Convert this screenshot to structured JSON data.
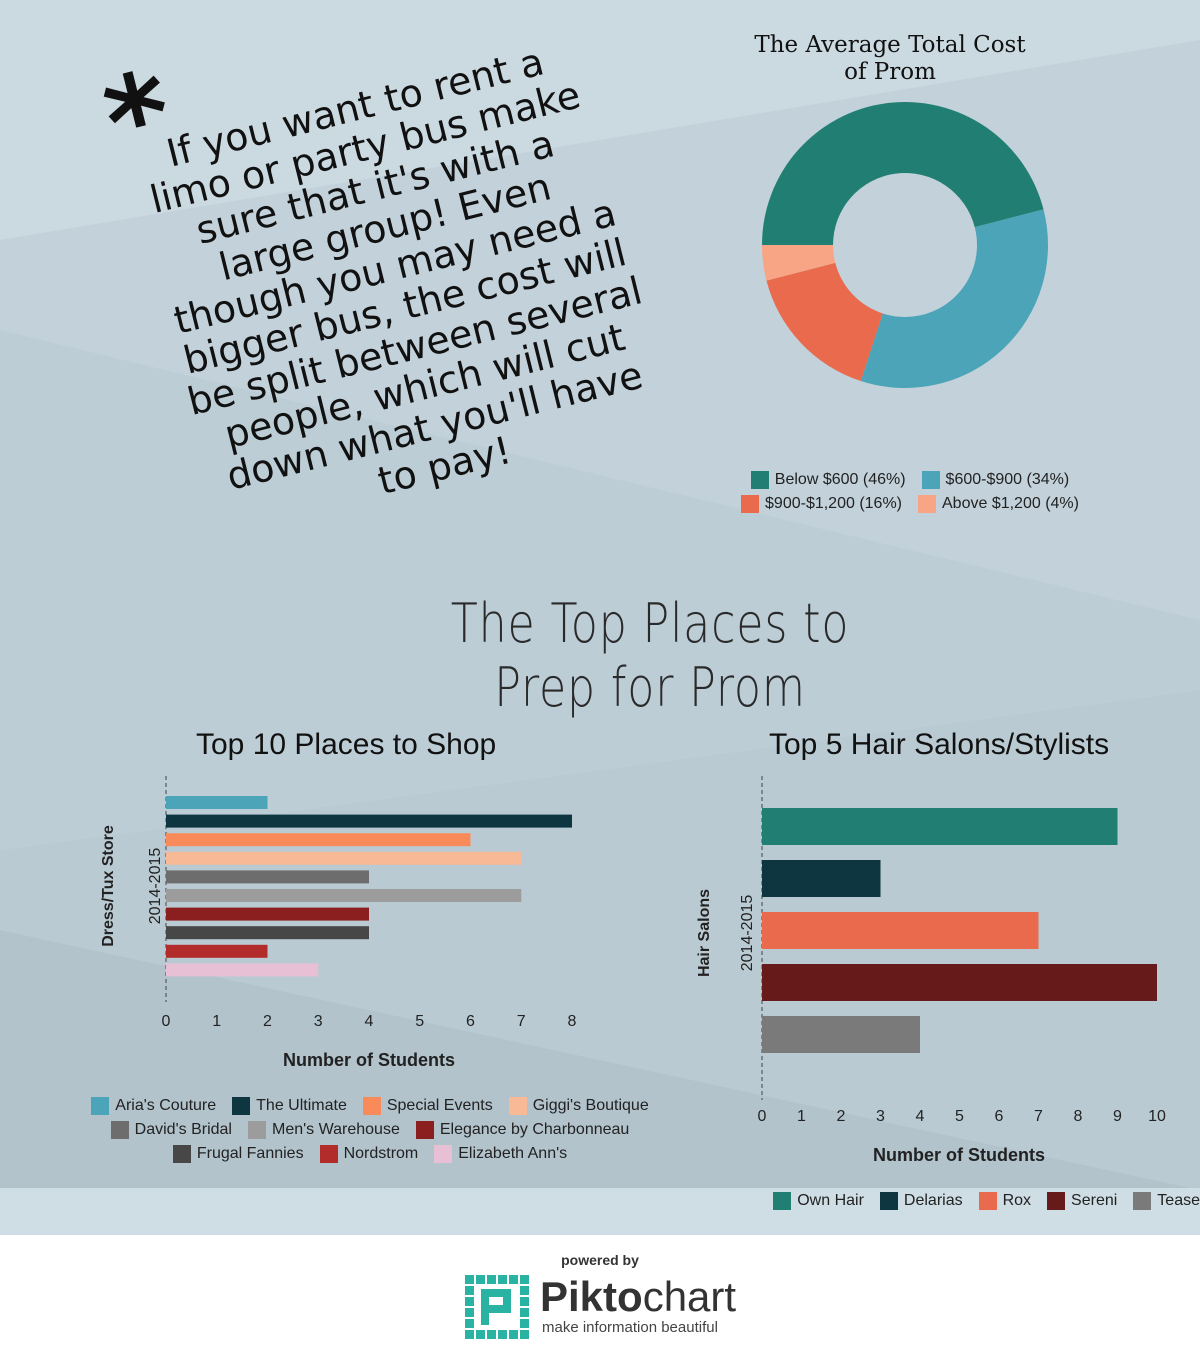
{
  "note": {
    "asterisk": "*",
    "text": "If you want to rent a limo or party bus make sure that it's with a large group! Even though you may need a bigger bus, the cost will be split between several people, which will cut down what you'll have to pay!"
  },
  "colors": {
    "teal_dark": "#217e72",
    "teal_light": "#4ca4b8",
    "coral": "#e96a4c",
    "peach": "#f7a585",
    "navy": "#0d3640",
    "orange": "#f98b5a",
    "light_peach": "#f7b996",
    "gray": "#6d6d6d",
    "light_gray": "#9c9c9c",
    "dark_red": "#8b1f1f",
    "charcoal": "#474747",
    "red": "#b22c2c",
    "pink": "#e7c0d5",
    "maroon": "#661a1a",
    "mid_gray": "#7a7a7a"
  },
  "main_title": {
    "line1": "The Top Places to",
    "line2": "Prep for Prom"
  },
  "chart_data": [
    {
      "type": "pie",
      "title_line1": "The Average Total Cost",
      "title_line2": "of Prom",
      "donut": true,
      "legend_position": "bottom",
      "slices": [
        {
          "label": "Below $600 (46%)",
          "value": 46,
          "color": "#217e72"
        },
        {
          "label": "$600-$900 (34%)",
          "value": 34,
          "color": "#4ca4b8"
        },
        {
          "label": "$900-$1,200 (16%)",
          "value": 16,
          "color": "#e96a4c"
        },
        {
          "label": "Above $1,200 (4%)",
          "value": 4,
          "color": "#f7a585"
        }
      ]
    },
    {
      "type": "bar",
      "orientation": "horizontal",
      "title": "Top 10 Places to Shop",
      "xlabel": "Number of Students",
      "ylabel": "Dress/Tux Store",
      "category": "2014-2015",
      "xlim": [
        0,
        8
      ],
      "xticks": [
        "0",
        "1",
        "2",
        "3",
        "4",
        "5",
        "6",
        "7",
        "8"
      ],
      "legend_position": "bottom",
      "series": [
        {
          "name": "Aria's Couture",
          "value": 2,
          "color": "#4ca4b8"
        },
        {
          "name": "The Ultimate",
          "value": 8,
          "color": "#0d3640"
        },
        {
          "name": "Special Events",
          "value": 6,
          "color": "#f98b5a"
        },
        {
          "name": "Giggi's Boutique",
          "value": 7,
          "color": "#f7b996"
        },
        {
          "name": "David's Bridal",
          "value": 4,
          "color": "#6d6d6d"
        },
        {
          "name": "Men's Warehouse",
          "value": 7,
          "color": "#9c9c9c"
        },
        {
          "name": "Elegance by Charbonneau",
          "value": 4,
          "color": "#8b1f1f"
        },
        {
          "name": "Frugal Fannies",
          "value": 4,
          "color": "#474747"
        },
        {
          "name": "Nordstrom",
          "value": 2,
          "color": "#b22c2c"
        },
        {
          "name": "Elizabeth Ann's",
          "value": 3,
          "color": "#e7c0d5"
        }
      ]
    },
    {
      "type": "bar",
      "orientation": "horizontal",
      "title": "Top 5 Hair Salons/Stylists",
      "xlabel": "Number of Students",
      "ylabel": "Hair Salons",
      "category": "2014-2015",
      "xlim": [
        0,
        10
      ],
      "xticks": [
        "0",
        "1",
        "2",
        "3",
        "4",
        "5",
        "6",
        "7",
        "8",
        "9",
        "10"
      ],
      "legend_position": "bottom",
      "series": [
        {
          "name": "Own Hair",
          "value": 9,
          "color": "#217e72"
        },
        {
          "name": "Delarias",
          "value": 3,
          "color": "#0d3640"
        },
        {
          "name": "Rox",
          "value": 7,
          "color": "#e96a4c"
        },
        {
          "name": "Sereni",
          "value": 10,
          "color": "#661a1a"
        },
        {
          "name": "Tease",
          "value": 4,
          "color": "#7a7a7a"
        }
      ]
    }
  ],
  "footer": {
    "powered_by": "powered by",
    "brand_a": "Pikto",
    "brand_b": "chart",
    "tagline": "make information beautiful"
  }
}
